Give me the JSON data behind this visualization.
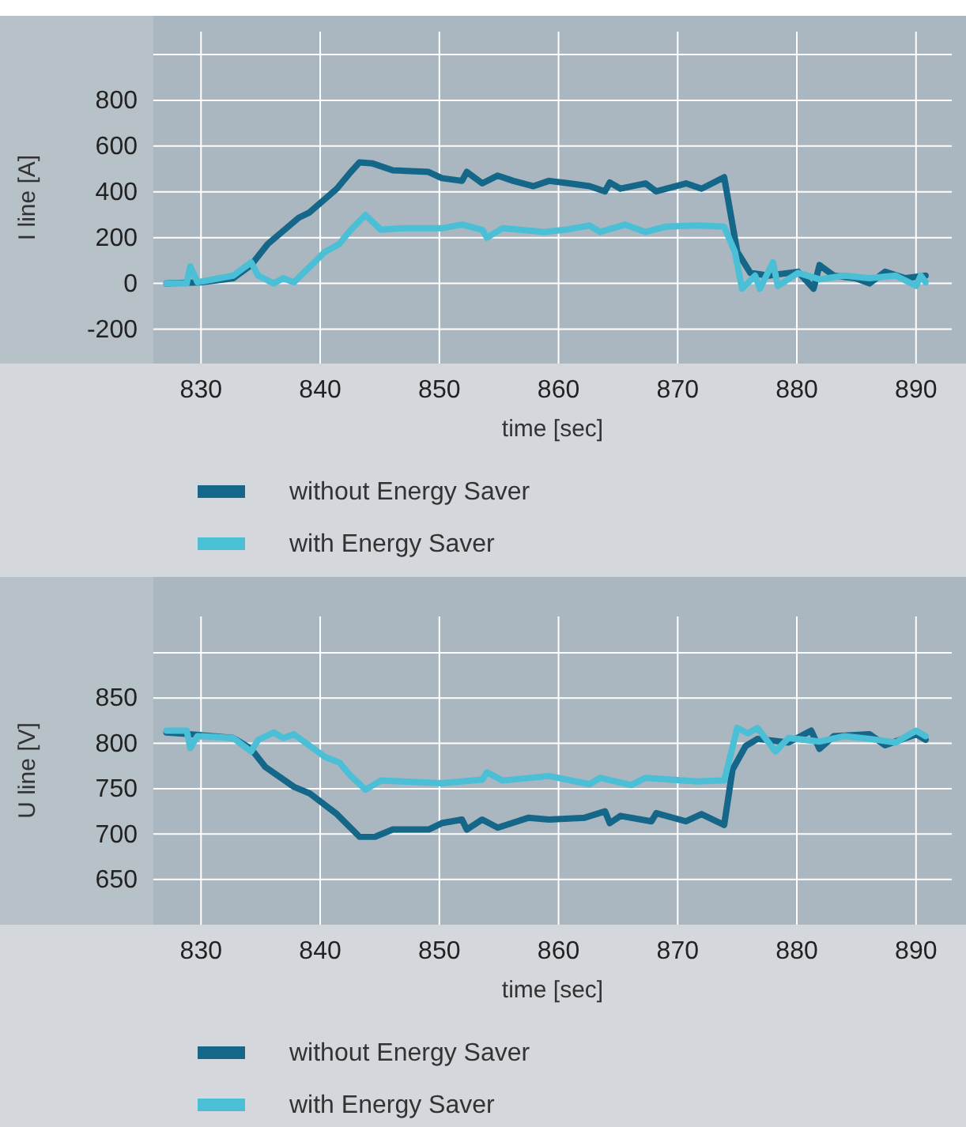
{
  "chart_data": [
    {
      "type": "line",
      "xlabel": "time [sec]",
      "ylabel": "I line [A]",
      "xlim": [
        826,
        893
      ],
      "xticks": [
        830,
        840,
        850,
        860,
        870,
        880,
        890
      ],
      "ylim": [
        -350,
        1100
      ],
      "yticks": [
        -200,
        0,
        200,
        400,
        600,
        800,
        {
          "value": 1000,
          "label": null
        }
      ],
      "grid": true,
      "legend": "bottom",
      "line_style": "solid",
      "series": [
        {
          "name": "without Energy Saver",
          "color": "#15678a",
          "x": [
            827.1,
            830,
            832.7,
            834.2,
            835.6,
            838.2,
            839.1,
            841.4,
            842.5,
            843.3,
            844.4,
            846.1,
            849.1,
            850.2,
            851.9,
            852.3,
            853.6,
            854.9,
            856.2,
            857.9,
            859.2,
            860.9,
            862.6,
            863.9,
            864.3,
            865.2,
            867.3,
            868.2,
            870.7,
            872,
            873.9,
            875,
            876.1,
            877.6,
            880.1,
            881.4,
            881.9,
            883.1,
            884.9,
            886.1,
            887.4,
            889.1,
            890.8
          ],
          "values": [
            0,
            5,
            23,
            80,
            172,
            287,
            310,
            414,
            483,
            529,
            524,
            494,
            487,
            460,
            448,
            487,
            437,
            471,
            448,
            425,
            448,
            437,
            425,
            402,
            441,
            414,
            437,
            402,
            437,
            414,
            464,
            138,
            46,
            34,
            51,
            -23,
            80,
            34,
            23,
            0,
            51,
            23,
            34
          ]
        },
        {
          "name": "with Energy Saver",
          "color": "#4bbfd6",
          "x": [
            827.1,
            828.8,
            829.1,
            829.7,
            832.7,
            834.2,
            834.8,
            836.1,
            836.9,
            837.8,
            840.4,
            841.6,
            842.5,
            843.8,
            845.1,
            846.8,
            850.2,
            851.9,
            853.6,
            854,
            855.3,
            858.8,
            860.5,
            862.6,
            863.5,
            865.6,
            867.3,
            869,
            871.6,
            873.9,
            874.8,
            875.4,
            876.5,
            876.9,
            878,
            878.4,
            880.1,
            881.9,
            884,
            886.1,
            888.3,
            890,
            890.4,
            890.8
          ],
          "values": [
            0,
            0,
            74,
            5,
            34,
            92,
            34,
            0,
            23,
            5,
            138,
            172,
            230,
            299,
            234,
            241,
            241,
            257,
            234,
            200,
            241,
            225,
            234,
            253,
            225,
            257,
            225,
            248,
            253,
            248,
            138,
            -23,
            34,
            -23,
            92,
            -11,
            46,
            18,
            34,
            23,
            34,
            -11,
            34,
            5
          ]
        }
      ]
    },
    {
      "type": "line",
      "xlabel": "time [sec]",
      "ylabel": "U line [V]",
      "xlim": [
        826,
        893
      ],
      "xticks": [
        830,
        840,
        850,
        860,
        870,
        880,
        890
      ],
      "ylim": [
        600,
        940
      ],
      "yticks": [
        650,
        700,
        750,
        800,
        850,
        {
          "value": 900,
          "label": null
        }
      ],
      "grid": true,
      "legend": "bottom",
      "line_style": "solid",
      "series": [
        {
          "name": "without Energy Saver",
          "color": "#15678a",
          "x": [
            827.1,
            829.2,
            832.7,
            834.2,
            835.4,
            837.8,
            839.1,
            841.4,
            843.3,
            844.6,
            846.1,
            849.1,
            850.2,
            851.9,
            852.3,
            853.6,
            854.9,
            857.5,
            859.2,
            862.2,
            863.9,
            864.3,
            865.2,
            867.8,
            868.2,
            870.7,
            872,
            873.9,
            874.6,
            875.7,
            876.7,
            879.3,
            881.2,
            881.9,
            883.1,
            886.1,
            887.4,
            890,
            890.8
          ],
          "values": [
            812,
            810,
            806,
            794,
            774,
            752,
            745,
            722,
            697,
            697,
            705,
            705,
            712,
            716,
            705,
            716,
            707,
            718,
            716,
            718,
            725,
            712,
            720,
            714,
            723,
            714,
            722,
            710,
            771,
            797,
            805,
            801,
            814,
            794,
            808,
            810,
            798,
            810,
            804
          ]
        },
        {
          "name": "with Energy Saver",
          "color": "#4bbfd6",
          "x": [
            827.1,
            828.8,
            829.1,
            829.7,
            832.7,
            834.2,
            834.8,
            836.1,
            836.9,
            837.8,
            840.4,
            841.6,
            842.5,
            843.8,
            845.1,
            850.2,
            853.6,
            854,
            855.3,
            859.2,
            862.6,
            863.5,
            866.1,
            867.3,
            871.6,
            873.9,
            875,
            875.9,
            876.7,
            878.2,
            879.3,
            881.9,
            884,
            886.1,
            888.3,
            890,
            890.8
          ],
          "values": [
            814,
            814,
            795,
            808,
            806,
            791,
            804,
            812,
            806,
            810,
            785,
            779,
            765,
            749,
            759,
            756,
            760,
            768,
            759,
            764,
            755,
            762,
            754,
            762,
            758,
            759,
            817,
            811,
            817,
            791,
            806,
            802,
            808,
            805,
            801,
            814,
            808
          ]
        }
      ]
    }
  ]
}
